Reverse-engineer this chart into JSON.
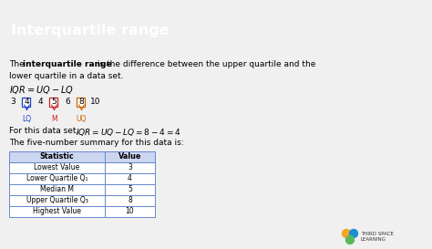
{
  "title": "Interquartile range",
  "title_bg": "#1a3fcc",
  "title_color": "#ffffff",
  "body_bg": "#f0f0f0",
  "para_text_1a": "The ",
  "para_bold": "interquartile range",
  "para_text_1b": " is the difference between the upper quartile and the",
  "para_text_2": "lower quartile in a data set.",
  "formula": "IQR = UQ − LQ",
  "data_numbers": [
    "3",
    "4",
    "4",
    "5",
    "6",
    "8",
    "10"
  ],
  "boxed_indices": [
    1,
    3,
    5
  ],
  "lq_color": "#1a3fcc",
  "m_color": "#cc2222",
  "uq_color": "#cc6600",
  "for_text": "For this data set, ",
  "for_formula": "IQR = UQ − LQ = 8 − 4 = 4",
  "summary_text": "The five-number summary for this data is:",
  "table_header": [
    "Statistic",
    "Value"
  ],
  "table_rows": [
    [
      "Lowest Value",
      "3"
    ],
    [
      "Lower Quartile Q₁",
      "4"
    ],
    [
      "Median M",
      "5"
    ],
    [
      "Upper Quartile Q₃",
      "8"
    ],
    [
      "Highest Value",
      "10"
    ]
  ],
  "table_header_bg": "#ccd6f0",
  "table_border_color": "#6688cc",
  "logo_text": "THIRD SPACE\nLEARNING"
}
